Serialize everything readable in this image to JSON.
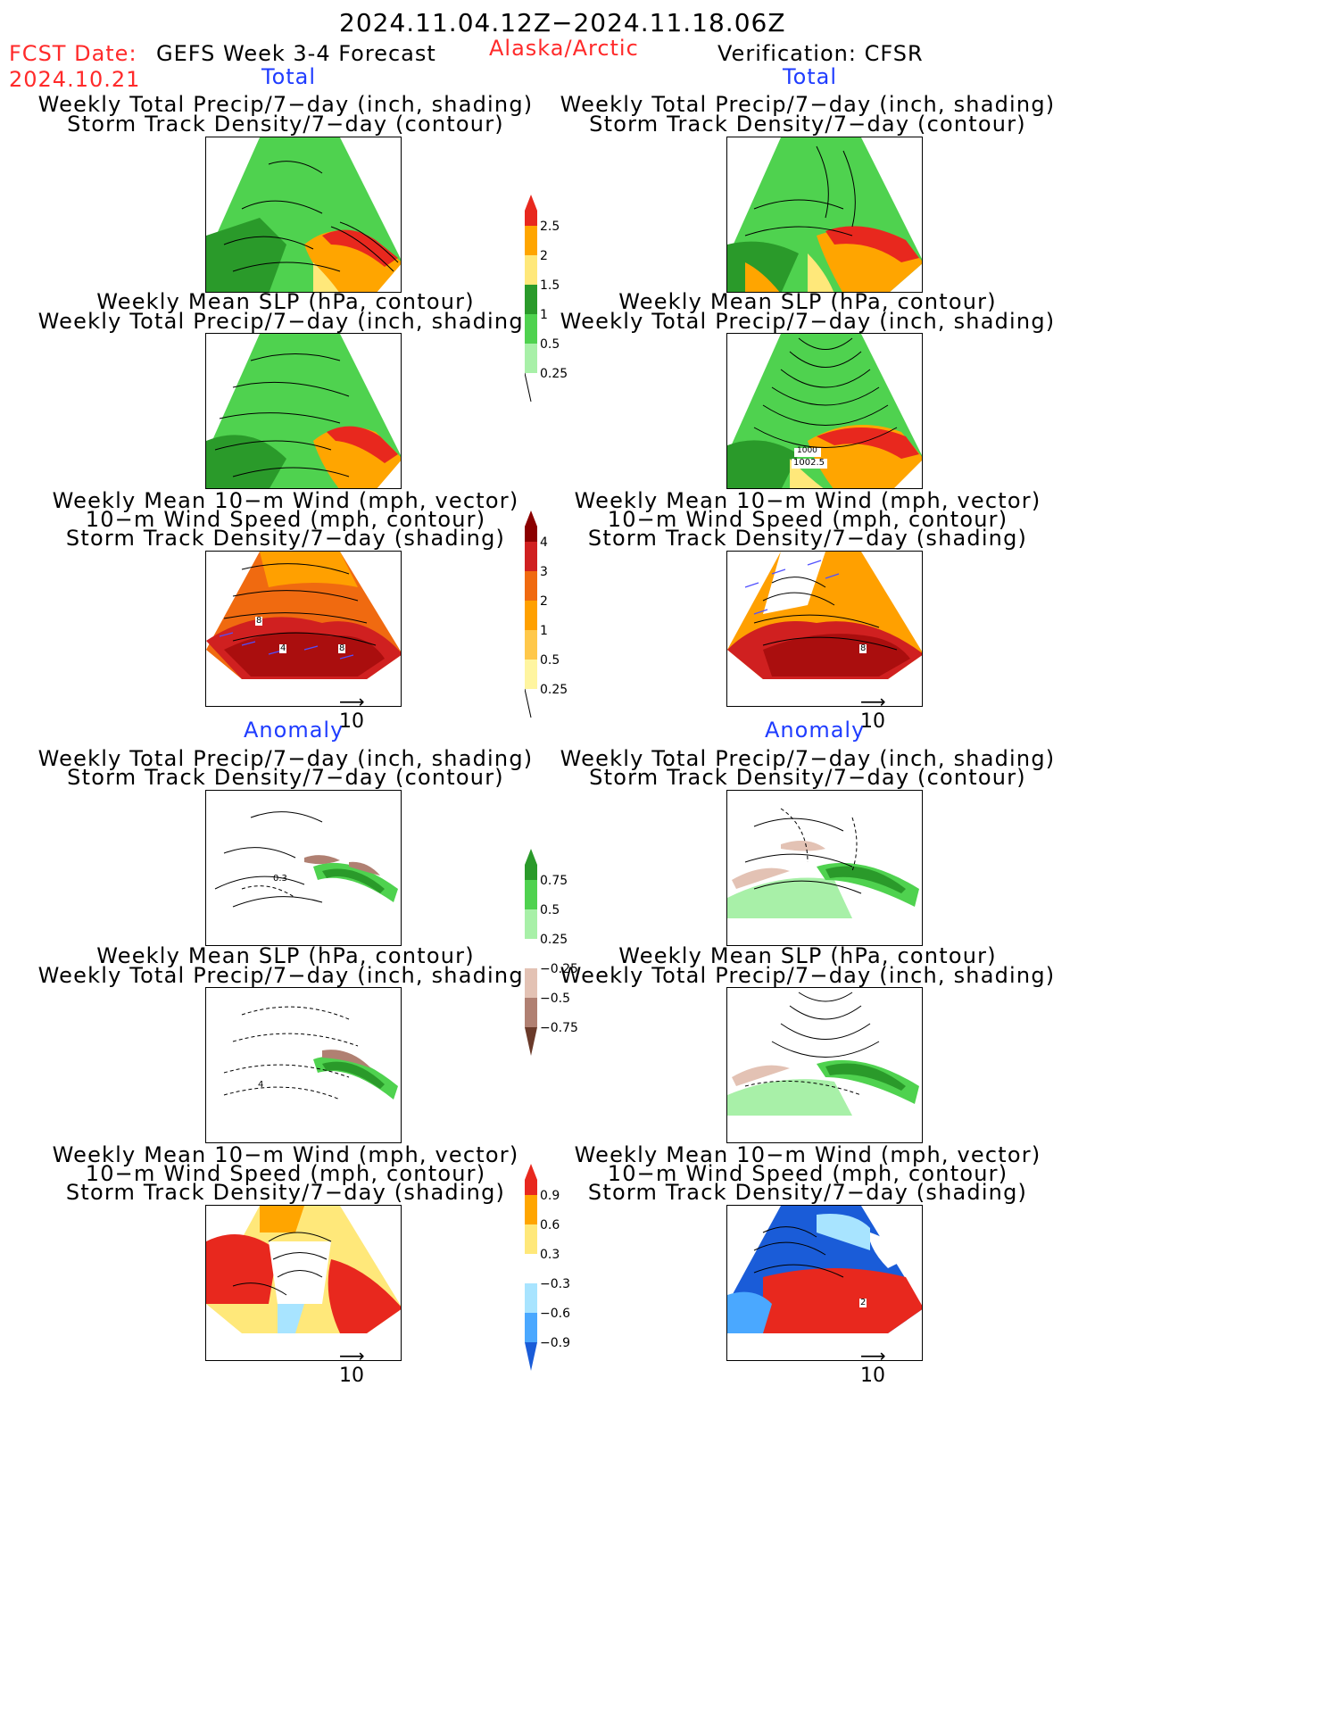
{
  "header": {
    "date_range": "2024.11.04.12Z−2024.11.18.06Z",
    "fcst_label": "FCST Date:",
    "fcst_date": "2024.10.21",
    "model": "GEFS Week 3-4 Forecast",
    "region": "Alaska/Arctic",
    "verification": "Verification: CFSR"
  },
  "sections": {
    "total_left": "Total",
    "total_right": "Total",
    "anomaly_left": "Anomaly",
    "anomaly_right": "Anomaly"
  },
  "captions": {
    "precip_storm": [
      "Weekly Total Precip/7−day (inch, shading)",
      "Storm Track Density/7−day (contour)"
    ],
    "slp_precip": [
      "Weekly Mean SLP (hPa, contour)",
      "Weekly Total Precip/7−day (inch, shading)"
    ],
    "wind_storm": [
      "Weekly Mean 10−m Wind (mph, vector)",
      "10−m Wind Speed (mph, contour)",
      "Storm Track Density/7−day (shading)"
    ]
  },
  "colorbars": {
    "precip_total": {
      "labels": [
        "2.5",
        "2",
        "1.5",
        "1",
        "0.5",
        "0.25"
      ],
      "colors": [
        "#e8281e",
        "#ffa500",
        "#ffe87a",
        "#2a9a2a",
        "#4fd24f",
        "#a8f0a8"
      ]
    },
    "storm_total": {
      "labels": [
        "4",
        "3",
        "2",
        "1",
        "0.5",
        "0.25"
      ],
      "colors": [
        "#8b0000",
        "#d02020",
        "#f06a10",
        "#ffa000",
        "#ffc84a",
        "#fff5a0"
      ]
    },
    "precip_anom": {
      "labels": [
        "0.75",
        "0.5",
        "0.25",
        "−0.25",
        "−0.5",
        "−0.75"
      ],
      "colors": [
        "#2a9a2a",
        "#4fd24f",
        "#a8f0a8",
        "#ffffff",
        "#e3c2b4",
        "#b08072",
        "#6a3a2a"
      ]
    },
    "storm_anom": {
      "labels": [
        "0.9",
        "0.6",
        "0.3",
        "−0.3",
        "−0.6",
        "−0.9"
      ],
      "colors": [
        "#e8281e",
        "#ffa500",
        "#ffe87a",
        "#ffffff",
        "#a8e4ff",
        "#4aa8ff",
        "#1a5cd8"
      ]
    }
  },
  "panel_labels": {
    "right_slp_a": "1000",
    "right_slp_b": "1002.5",
    "left_wind_a": "8",
    "left_wind_b": "4",
    "left_wind_c": "8",
    "right_wind_a": "8",
    "left_anom_precip": "0.3",
    "left_anom_slp": "4",
    "right_anom_wind": "2"
  },
  "vector_ref": "10"
}
